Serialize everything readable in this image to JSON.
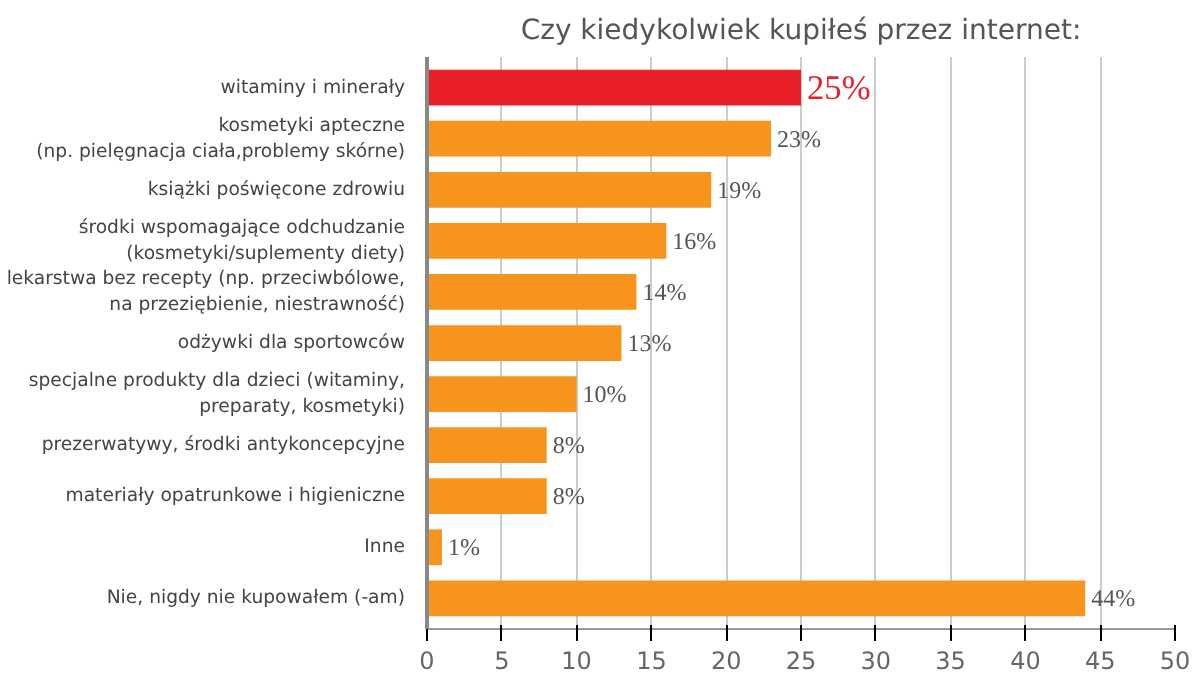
{
  "chart_data": {
    "type": "bar",
    "orientation": "horizontal",
    "title": "Czy kiedykolwiek kupiłeś przez internet:",
    "categories": [
      "witaminy i minerały",
      "kosmetyki apteczne\n(np. pielęgnacja ciała,problemy skórne)",
      "książki poświęcone zdrowiu",
      "środki wspomagające odchudzanie\n(kosmetyki/suplementy diety)",
      "lekarstwa bez recepty (np. przeciwbólowe,\nna przeziębienie, niestrawność)",
      "odżywki dla sportowców",
      "specjalne produkty dla dzieci (witaminy,\npreparaty, kosmetyki)",
      "prezerwatywy, środki antykoncepcyjne",
      "materiały opatrunkowe i higieniczne",
      "Inne",
      "Nie, nigdy nie kupowałem (-am)"
    ],
    "values": [
      25,
      23,
      19,
      16,
      14,
      13,
      10,
      8,
      8,
      1,
      44
    ],
    "value_labels": [
      "25%",
      "23%",
      "19%",
      "16%",
      "14%",
      "13%",
      "10%",
      "8%",
      "8%",
      "1%",
      "44%"
    ],
    "colors": [
      "#e8202a",
      "#f7941d",
      "#f7941d",
      "#f7941d",
      "#f7941d",
      "#f7941d",
      "#f7941d",
      "#f7941d",
      "#f7941d",
      "#f7941d",
      "#f7941d"
    ],
    "xlim": [
      0,
      50
    ],
    "xticks": [
      0,
      5,
      10,
      15,
      20,
      25,
      30,
      35,
      40,
      45,
      50
    ],
    "grid": "x"
  }
}
